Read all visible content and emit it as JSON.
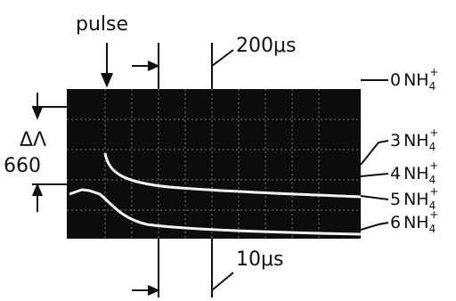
{
  "annotations": {
    "pulse": "pulse",
    "time_top": "200μs",
    "time_bottom": "10μs",
    "delta_label": "ΔΛ",
    "delta_value": "660"
  },
  "traces": [
    {
      "count": "0",
      "species": "NH",
      "sub": "4",
      "sup": "+"
    },
    {
      "count": "3",
      "species": "NH",
      "sub": "4",
      "sup": "+"
    },
    {
      "count": "4",
      "species": "NH",
      "sub": "4",
      "sup": "+"
    },
    {
      "count": "5",
      "species": "NH",
      "sub": "4",
      "sup": "+"
    },
    {
      "count": "6",
      "species": "NH",
      "sub": "4",
      "sup": "+"
    }
  ]
}
